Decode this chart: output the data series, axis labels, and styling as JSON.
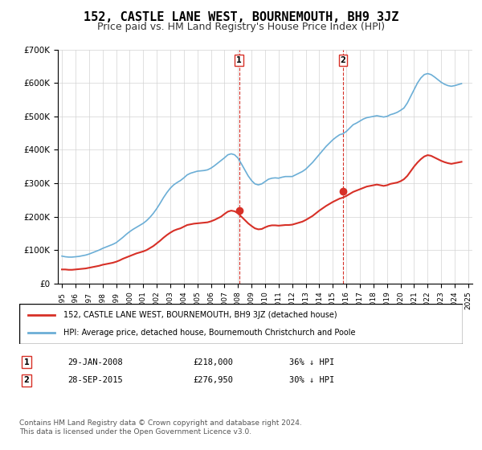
{
  "title": "152, CASTLE LANE WEST, BOURNEMOUTH, BH9 3JZ",
  "subtitle": "Price paid vs. HM Land Registry's House Price Index (HPI)",
  "title_fontsize": 11,
  "subtitle_fontsize": 9,
  "ylim": [
    0,
    700000
  ],
  "yticks": [
    0,
    100000,
    200000,
    300000,
    400000,
    500000,
    600000,
    700000
  ],
  "ytick_labels": [
    "£0",
    "£100K",
    "£200K",
    "£300K",
    "£400K",
    "£500K",
    "£600K",
    "£700K"
  ],
  "x_start_year": 1995,
  "x_end_year": 2025,
  "hpi_color": "#6baed6",
  "price_color": "#d73027",
  "sale1_year": 2008.08,
  "sale1_price": 218000,
  "sale2_year": 2015.75,
  "sale2_price": 276950,
  "legend_label_price": "152, CASTLE LANE WEST, BOURNEMOUTH, BH9 3JZ (detached house)",
  "legend_label_hpi": "HPI: Average price, detached house, Bournemouth Christchurch and Poole",
  "row1_label": "1",
  "row1_date": "29-JAN-2008",
  "row1_price": "£218,000",
  "row1_hpi": "36% ↓ HPI",
  "row2_label": "2",
  "row2_date": "28-SEP-2015",
  "row2_price": "£276,950",
  "row2_hpi": "30% ↓ HPI",
  "footnote1": "Contains HM Land Registry data © Crown copyright and database right 2024.",
  "footnote2": "This data is licensed under the Open Government Licence v3.0.",
  "hpi_data_x": [
    1995.0,
    1995.25,
    1995.5,
    1995.75,
    1996.0,
    1996.25,
    1996.5,
    1996.75,
    1997.0,
    1997.25,
    1997.5,
    1997.75,
    1998.0,
    1998.25,
    1998.5,
    1998.75,
    1999.0,
    1999.25,
    1999.5,
    1999.75,
    2000.0,
    2000.25,
    2000.5,
    2000.75,
    2001.0,
    2001.25,
    2001.5,
    2001.75,
    2002.0,
    2002.25,
    2002.5,
    2002.75,
    2003.0,
    2003.25,
    2003.5,
    2003.75,
    2004.0,
    2004.25,
    2004.5,
    2004.75,
    2005.0,
    2005.25,
    2005.5,
    2005.75,
    2006.0,
    2006.25,
    2006.5,
    2006.75,
    2007.0,
    2007.25,
    2007.5,
    2007.75,
    2008.0,
    2008.25,
    2008.5,
    2008.75,
    2009.0,
    2009.25,
    2009.5,
    2009.75,
    2010.0,
    2010.25,
    2010.5,
    2010.75,
    2011.0,
    2011.25,
    2011.5,
    2011.75,
    2012.0,
    2012.25,
    2012.5,
    2012.75,
    2013.0,
    2013.25,
    2013.5,
    2013.75,
    2014.0,
    2014.25,
    2014.5,
    2014.75,
    2015.0,
    2015.25,
    2015.5,
    2015.75,
    2016.0,
    2016.25,
    2016.5,
    2016.75,
    2017.0,
    2017.25,
    2017.5,
    2017.75,
    2018.0,
    2018.25,
    2018.5,
    2018.75,
    2019.0,
    2019.25,
    2019.5,
    2019.75,
    2020.0,
    2020.25,
    2020.5,
    2020.75,
    2021.0,
    2021.25,
    2021.5,
    2021.75,
    2022.0,
    2022.25,
    2022.5,
    2022.75,
    2023.0,
    2023.25,
    2023.5,
    2023.75,
    2024.0,
    2024.25,
    2024.5
  ],
  "hpi_data_y": [
    82000,
    80000,
    79000,
    79000,
    80000,
    81000,
    83000,
    85000,
    88000,
    92000,
    96000,
    100000,
    105000,
    109000,
    113000,
    117000,
    122000,
    130000,
    138000,
    147000,
    155000,
    162000,
    168000,
    174000,
    180000,
    188000,
    198000,
    210000,
    224000,
    240000,
    257000,
    272000,
    285000,
    295000,
    302000,
    308000,
    316000,
    325000,
    330000,
    333000,
    336000,
    337000,
    338000,
    340000,
    345000,
    352000,
    360000,
    368000,
    376000,
    385000,
    388000,
    385000,
    375000,
    358000,
    340000,
    322000,
    308000,
    298000,
    295000,
    298000,
    305000,
    312000,
    315000,
    316000,
    315000,
    318000,
    320000,
    320000,
    320000,
    325000,
    330000,
    335000,
    342000,
    352000,
    362000,
    374000,
    386000,
    398000,
    410000,
    420000,
    430000,
    438000,
    445000,
    448000,
    455000,
    465000,
    475000,
    480000,
    486000,
    492000,
    496000,
    498000,
    500000,
    502000,
    500000,
    498000,
    500000,
    505000,
    508000,
    512000,
    518000,
    525000,
    540000,
    560000,
    580000,
    600000,
    615000,
    625000,
    628000,
    625000,
    618000,
    610000,
    602000,
    596000,
    592000,
    590000,
    592000,
    595000,
    598000
  ],
  "price_data_x": [
    1995.0,
    1995.25,
    1995.5,
    1995.75,
    1996.0,
    1996.25,
    1996.5,
    1996.75,
    1997.0,
    1997.25,
    1997.5,
    1997.75,
    1998.0,
    1998.25,
    1998.5,
    1998.75,
    1999.0,
    1999.25,
    1999.5,
    1999.75,
    2000.0,
    2000.25,
    2000.5,
    2000.75,
    2001.0,
    2001.25,
    2001.5,
    2001.75,
    2002.0,
    2002.25,
    2002.5,
    2002.75,
    2003.0,
    2003.25,
    2003.5,
    2003.75,
    2004.0,
    2004.25,
    2004.5,
    2004.75,
    2005.0,
    2005.25,
    2005.5,
    2005.75,
    2006.0,
    2006.25,
    2006.5,
    2006.75,
    2007.0,
    2007.25,
    2007.5,
    2007.75,
    2008.0,
    2008.25,
    2008.5,
    2008.75,
    2009.0,
    2009.25,
    2009.5,
    2009.75,
    2010.0,
    2010.25,
    2010.5,
    2010.75,
    2011.0,
    2011.25,
    2011.5,
    2011.75,
    2012.0,
    2012.25,
    2012.5,
    2012.75,
    2013.0,
    2013.25,
    2013.5,
    2013.75,
    2014.0,
    2014.25,
    2014.5,
    2014.75,
    2015.0,
    2015.25,
    2015.5,
    2015.75,
    2016.0,
    2016.25,
    2016.5,
    2016.75,
    2017.0,
    2017.25,
    2017.5,
    2017.75,
    2018.0,
    2018.25,
    2018.5,
    2018.75,
    2019.0,
    2019.25,
    2019.5,
    2019.75,
    2020.0,
    2020.25,
    2020.5,
    2020.75,
    2021.0,
    2021.25,
    2021.5,
    2021.75,
    2022.0,
    2022.25,
    2022.5,
    2022.75,
    2023.0,
    2023.25,
    2023.5,
    2023.75,
    2024.0,
    2024.25,
    2024.5
  ],
  "price_data_y": [
    42000,
    42000,
    41000,
    41000,
    42000,
    43000,
    44000,
    45000,
    47000,
    49000,
    51000,
    53000,
    56000,
    58000,
    60000,
    62000,
    65000,
    69000,
    74000,
    78000,
    82000,
    86000,
    90000,
    93000,
    96000,
    100000,
    106000,
    112000,
    120000,
    128000,
    137000,
    145000,
    152000,
    158000,
    162000,
    165000,
    170000,
    175000,
    177000,
    179000,
    180000,
    181000,
    182000,
    183000,
    186000,
    190000,
    195000,
    200000,
    208000,
    215000,
    218000,
    216000,
    210000,
    200000,
    190000,
    180000,
    172000,
    165000,
    162000,
    163000,
    168000,
    172000,
    174000,
    174000,
    173000,
    174000,
    175000,
    175000,
    176000,
    179000,
    182000,
    185000,
    190000,
    196000,
    202000,
    210000,
    218000,
    225000,
    232000,
    238000,
    244000,
    249000,
    254000,
    257000,
    262000,
    268000,
    274000,
    278000,
    282000,
    286000,
    290000,
    292000,
    294000,
    296000,
    294000,
    292000,
    294000,
    298000,
    300000,
    302000,
    306000,
    312000,
    322000,
    336000,
    350000,
    362000,
    372000,
    380000,
    384000,
    382000,
    377000,
    372000,
    367000,
    363000,
    360000,
    358000,
    360000,
    362000,
    364000
  ]
}
